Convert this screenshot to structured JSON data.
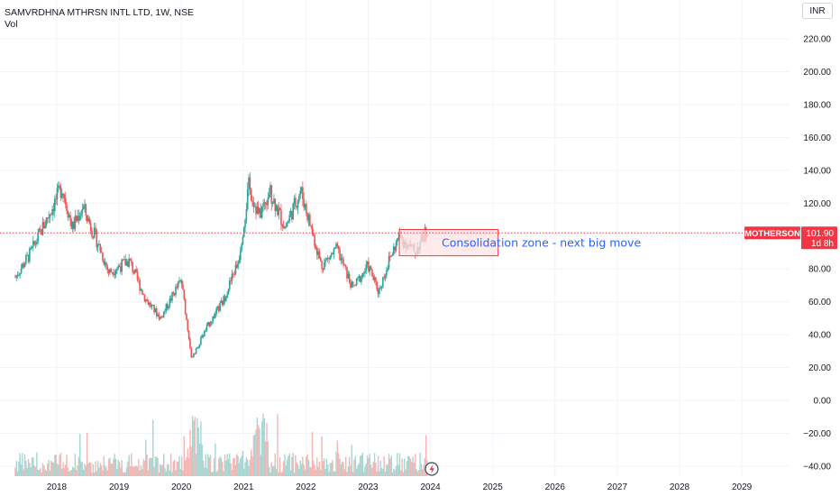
{
  "header": {
    "title": "SAMVRDHNA MTHRSN INTL LTD, 1W, NSE",
    "volume_label": "Vol"
  },
  "currency_button": "INR",
  "price_label": {
    "symbol": "MOTHERSON",
    "price": "101.90",
    "countdown": "1d 8h",
    "color": "#f23645"
  },
  "annotation": {
    "text": "Consolidation zone - next big move",
    "zone_price_high": 104,
    "zone_price_low": 88,
    "zone_date_start": "2023-07",
    "zone_date_end": "2025-01"
  },
  "colors": {
    "up": "#26a69a",
    "down": "#ef5350",
    "volume_up": "#a5d6d2",
    "volume_down": "#f5b5b3",
    "zone_fill": "#fde3e3",
    "zone_border": "#f23645"
  },
  "chart_data": {
    "type": "candlestick",
    "title": "SAMVRDHNA MTHRSN INTL LTD, 1W, NSE",
    "y_tick_labels": [
      "220.00",
      "200.00",
      "180.00",
      "160.00",
      "140.00",
      "120.00",
      "100.00",
      "80.00",
      "60.00",
      "40.00",
      "20.00",
      "0.00",
      "−20.00",
      "−40.00"
    ],
    "y_ticks": [
      220,
      200,
      180,
      160,
      140,
      120,
      100,
      80,
      60,
      40,
      20,
      0,
      -20,
      -40
    ],
    "ylim": [
      -42,
      230
    ],
    "x_ticks": [
      "2018",
      "2019",
      "2020",
      "2021",
      "2022",
      "2023",
      "2024",
      "2025",
      "2026",
      "2027",
      "2028",
      "2029"
    ],
    "xlim": [
      "2017-05",
      "2029-07"
    ],
    "last_price": 101.9,
    "price_path": [
      {
        "date": "2017-05",
        "close": 75
      },
      {
        "date": "2017-08",
        "close": 90
      },
      {
        "date": "2017-11",
        "close": 110
      },
      {
        "date": "2018-02",
        "close": 130
      },
      {
        "date": "2018-04",
        "close": 105
      },
      {
        "date": "2018-06",
        "close": 118
      },
      {
        "date": "2018-09",
        "close": 95
      },
      {
        "date": "2018-11",
        "close": 78
      },
      {
        "date": "2019-03",
        "close": 85
      },
      {
        "date": "2019-06",
        "close": 62
      },
      {
        "date": "2019-09",
        "close": 50
      },
      {
        "date": "2019-12",
        "close": 68
      },
      {
        "date": "2020-01",
        "close": 73
      },
      {
        "date": "2020-03",
        "close": 25
      },
      {
        "date": "2020-06",
        "close": 45
      },
      {
        "date": "2020-09",
        "close": 60
      },
      {
        "date": "2020-12",
        "close": 85
      },
      {
        "date": "2021-02",
        "close": 130
      },
      {
        "date": "2021-04",
        "close": 112
      },
      {
        "date": "2021-06",
        "close": 128
      },
      {
        "date": "2021-09",
        "close": 105
      },
      {
        "date": "2021-12",
        "close": 128
      },
      {
        "date": "2022-02",
        "close": 105
      },
      {
        "date": "2022-04",
        "close": 82
      },
      {
        "date": "2022-07",
        "close": 92
      },
      {
        "date": "2022-10",
        "close": 68
      },
      {
        "date": "2023-01",
        "close": 82
      },
      {
        "date": "2023-03",
        "close": 66
      },
      {
        "date": "2023-05",
        "close": 85
      },
      {
        "date": "2023-07",
        "close": 100
      },
      {
        "date": "2023-10",
        "close": 90
      },
      {
        "date": "2023-12",
        "close": 101.9
      }
    ]
  }
}
